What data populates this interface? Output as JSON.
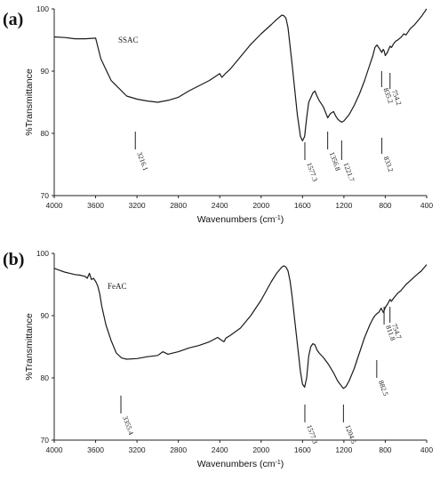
{
  "chart_data": [
    {
      "type": "line",
      "panel_label": "(a)",
      "sample_label": "SSAC",
      "xlabel": "Wavenumbers (cm-1)",
      "xlabel_main": "Wavenumbers (cm",
      "xlabel_sup": "-1",
      "xlabel_end": ")",
      "ylabel": "%Transmittance",
      "xlim": [
        4000,
        400
      ],
      "ylim": [
        70,
        100
      ],
      "x_ticks": [
        "4000",
        "3600",
        "3200",
        "2800",
        "2400",
        "2000",
        "1600",
        "1200",
        "800",
        "400"
      ],
      "y_ticks": [
        "70",
        "80",
        "90",
        "100"
      ],
      "grid": false,
      "series": [
        {
          "x": [
            4000,
            3900,
            3850,
            3800,
            3700,
            3600,
            3550,
            3450,
            3300,
            3200,
            3100,
            3000,
            2900,
            2800,
            2700,
            2500,
            2400,
            2380,
            2340,
            2300,
            2200,
            2100,
            2000,
            1900,
            1850,
            1800,
            1780,
            1760,
            1740,
            1700,
            1650,
            1620,
            1600,
            1580,
            1560,
            1540,
            1500,
            1480,
            1460,
            1440,
            1420,
            1400,
            1380,
            1356,
            1330,
            1300,
            1280,
            1260,
            1240,
            1221,
            1200,
            1150,
            1100,
            1050,
            1000,
            960,
            920,
            900,
            880,
            860,
            834,
            820,
            810,
            800,
            780,
            760,
            754,
            740,
            720,
            700,
            680,
            650,
            620,
            600,
            560,
            520,
            480,
            450,
            430,
            420,
            410,
            400
          ],
          "y": [
            95.5,
            95.4,
            95.3,
            95.2,
            95.2,
            95.3,
            92.0,
            88.5,
            86.0,
            85.5,
            85.2,
            85.0,
            85.3,
            85.8,
            86.8,
            88.5,
            89.6,
            89.0,
            89.7,
            90.3,
            92.3,
            94.3,
            96.0,
            97.5,
            98.3,
            99.0,
            98.9,
            98.5,
            97.0,
            91.0,
            83.0,
            79.5,
            78.8,
            79.5,
            82.5,
            85.0,
            86.5,
            86.8,
            86.0,
            85.3,
            84.8,
            84.3,
            83.5,
            82.5,
            83.2,
            83.5,
            82.8,
            82.3,
            82.0,
            81.8,
            82.0,
            83.0,
            84.5,
            86.3,
            88.5,
            90.5,
            92.5,
            93.8,
            94.2,
            93.7,
            93.0,
            93.5,
            93.2,
            92.5,
            93.0,
            93.8,
            94.0,
            93.8,
            94.4,
            94.8,
            95.0,
            95.4,
            96.0,
            95.8,
            96.8,
            97.4,
            98.2,
            98.8,
            99.3,
            99.5,
            99.8,
            100.0
          ]
        }
      ],
      "peaks": [
        {
          "label": "3216.1",
          "x": 3216.1
        },
        {
          "label": "1577.3",
          "x": 1577.3
        },
        {
          "label": "1356.8",
          "x": 1356.8
        },
        {
          "label": "1221.7",
          "x": 1221.7
        },
        {
          "label": "833.2",
          "x": 833.2
        },
        {
          "label": "835.2",
          "x": 835.2
        },
        {
          "label": "754.2",
          "x": 754.2
        }
      ]
    },
    {
      "type": "line",
      "panel_label": "(b)",
      "sample_label": "FeAC",
      "xlabel": "Wavenumbers (cm-1)",
      "xlabel_main": "Wavenumbers (cm",
      "xlabel_sup": "-1",
      "xlabel_end": ")",
      "ylabel": "%Transmittance",
      "xlim": [
        4000,
        400
      ],
      "ylim": [
        70,
        100
      ],
      "x_ticks": [
        "4000",
        "3600",
        "3200",
        "2800",
        "2400",
        "2000",
        "1600",
        "1200",
        "800",
        "400"
      ],
      "y_ticks": [
        "70",
        "80",
        "90",
        "100"
      ],
      "grid": false,
      "series": [
        {
          "x": [
            4000,
            3950,
            3900,
            3850,
            3800,
            3750,
            3700,
            3680,
            3660,
            3640,
            3620,
            3600,
            3580,
            3560,
            3540,
            3500,
            3450,
            3400,
            3350,
            3300,
            3200,
            3100,
            3000,
            2950,
            2900,
            2800,
            2700,
            2600,
            2500,
            2420,
            2380,
            2360,
            2340,
            2300,
            2200,
            2100,
            2000,
            1900,
            1850,
            1800,
            1780,
            1760,
            1740,
            1720,
            1700,
            1680,
            1650,
            1620,
            1600,
            1580,
            1560,
            1540,
            1520,
            1500,
            1480,
            1460,
            1440,
            1400,
            1350,
            1300,
            1260,
            1220,
            1204,
            1180,
            1150,
            1100,
            1050,
            1000,
            950,
            920,
            900,
            882,
            860,
            840,
            818,
            800,
            780,
            760,
            754,
            740,
            720,
            700,
            680,
            650,
            620,
            600,
            560,
            520,
            480,
            450,
            430,
            420,
            410,
            400
          ],
          "y": [
            97.6,
            97.3,
            97.0,
            96.8,
            96.6,
            96.5,
            96.3,
            96.0,
            96.8,
            95.8,
            96.0,
            95.5,
            94.8,
            93.5,
            91.5,
            88.5,
            86.0,
            84.0,
            83.2,
            83.0,
            83.1,
            83.4,
            83.6,
            84.2,
            83.8,
            84.2,
            84.8,
            85.2,
            85.8,
            86.5,
            86.0,
            85.8,
            86.4,
            86.8,
            88.0,
            90.0,
            92.5,
            95.5,
            96.8,
            97.8,
            98.0,
            97.8,
            97.2,
            95.5,
            93.0,
            90.0,
            85.5,
            81.0,
            79.0,
            78.5,
            80.0,
            83.5,
            85.0,
            85.5,
            85.3,
            84.5,
            84.0,
            83.3,
            82.2,
            80.8,
            79.5,
            78.6,
            78.3,
            78.6,
            79.5,
            81.5,
            84.0,
            86.5,
            88.5,
            89.5,
            90.0,
            90.3,
            90.6,
            91.2,
            90.5,
            91.3,
            91.8,
            92.4,
            92.6,
            92.3,
            92.8,
            93.2,
            93.6,
            94.0,
            94.6,
            95.0,
            95.6,
            96.2,
            96.8,
            97.2,
            97.6,
            97.8,
            98.0,
            98.2
          ]
        }
      ],
      "peaks": [
        {
          "label": "3355.4",
          "x": 3355.4
        },
        {
          "label": "1577.3",
          "x": 1577.3
        },
        {
          "label": "1204.5",
          "x": 1204.5
        },
        {
          "label": "882.5",
          "x": 882.5
        },
        {
          "label": "811.8",
          "x": 811.8
        },
        {
          "label": "754.7",
          "x": 754.7
        }
      ]
    }
  ]
}
